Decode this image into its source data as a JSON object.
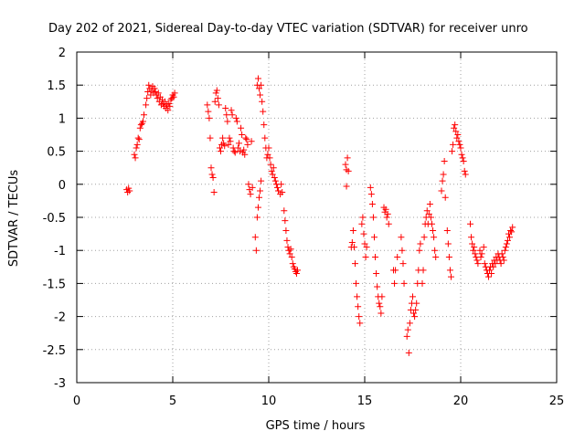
{
  "chart_data": {
    "type": "scatter",
    "title": "Day 202 of 2021, Sidereal Day-to-day VTEC variation (SDTVAR) for receiver unro",
    "xlabel": "GPS time / hours",
    "ylabel": "SDTVAR / TECUs",
    "xlim": [
      0,
      25
    ],
    "ylim": [
      -3,
      2
    ],
    "xticks": [
      0,
      5,
      10,
      15,
      20,
      25
    ],
    "yticks": [
      -3,
      -2.5,
      -2,
      -1.5,
      -1,
      -0.5,
      0,
      0.5,
      1,
      1.5,
      2
    ],
    "xtick_labels": [
      "0",
      "5",
      "10",
      "15",
      "20",
      "25"
    ],
    "ytick_labels": [
      "-3",
      "-2.5",
      "-2",
      "-1.5",
      "-1",
      "-0.5",
      "0",
      "0.5",
      "1",
      "1.5",
      "2"
    ],
    "grid": true,
    "marker": "+",
    "color": "#ff0000",
    "series": [
      {
        "name": "SDTVAR",
        "points": [
          [
            2.6,
            -0.08
          ],
          [
            2.65,
            -0.12
          ],
          [
            2.7,
            -0.06
          ],
          [
            2.75,
            -0.1
          ],
          [
            3.0,
            0.45
          ],
          [
            3.05,
            0.4
          ],
          [
            3.1,
            0.55
          ],
          [
            3.15,
            0.6
          ],
          [
            3.2,
            0.7
          ],
          [
            3.25,
            0.68
          ],
          [
            3.3,
            0.85
          ],
          [
            3.35,
            0.9
          ],
          [
            3.4,
            0.92
          ],
          [
            3.45,
            0.95
          ],
          [
            3.5,
            1.05
          ],
          [
            3.6,
            1.2
          ],
          [
            3.65,
            1.3
          ],
          [
            3.7,
            1.4
          ],
          [
            3.75,
            1.5
          ],
          [
            3.8,
            1.45
          ],
          [
            3.85,
            1.35
          ],
          [
            3.9,
            1.42
          ],
          [
            3.95,
            1.48
          ],
          [
            4.0,
            1.38
          ],
          [
            4.05,
            1.45
          ],
          [
            4.1,
            1.4
          ],
          [
            4.15,
            1.35
          ],
          [
            4.2,
            1.3
          ],
          [
            4.25,
            1.38
          ],
          [
            4.3,
            1.25
          ],
          [
            4.35,
            1.32
          ],
          [
            4.4,
            1.2
          ],
          [
            4.45,
            1.28
          ],
          [
            4.5,
            1.22
          ],
          [
            4.55,
            1.18
          ],
          [
            4.6,
            1.25
          ],
          [
            4.65,
            1.15
          ],
          [
            4.7,
            1.2
          ],
          [
            4.75,
            1.12
          ],
          [
            4.8,
            1.22
          ],
          [
            4.85,
            1.18
          ],
          [
            4.9,
            1.28
          ],
          [
            4.95,
            1.3
          ],
          [
            5.0,
            1.35
          ],
          [
            5.05,
            1.32
          ],
          [
            5.1,
            1.38
          ],
          [
            6.8,
            1.2
          ],
          [
            6.85,
            1.1
          ],
          [
            6.9,
            1.0
          ],
          [
            6.95,
            0.7
          ],
          [
            7.0,
            0.25
          ],
          [
            7.05,
            0.15
          ],
          [
            7.1,
            0.1
          ],
          [
            7.15,
            -0.12
          ],
          [
            7.2,
            1.25
          ],
          [
            7.25,
            1.38
          ],
          [
            7.3,
            1.42
          ],
          [
            7.35,
            1.3
          ],
          [
            7.4,
            1.2
          ],
          [
            7.45,
            0.55
          ],
          [
            7.5,
            0.5
          ],
          [
            7.55,
            0.6
          ],
          [
            7.6,
            0.7
          ],
          [
            7.65,
            0.62
          ],
          [
            7.7,
            0.58
          ],
          [
            7.75,
            1.15
          ],
          [
            7.8,
            1.05
          ],
          [
            7.85,
            0.95
          ],
          [
            7.9,
            0.6
          ],
          [
            7.95,
            0.7
          ],
          [
            8.0,
            0.65
          ],
          [
            8.05,
            1.12
          ],
          [
            8.1,
            1.05
          ],
          [
            8.15,
            0.55
          ],
          [
            8.2,
            0.5
          ],
          [
            8.25,
            0.48
          ],
          [
            8.3,
            1.0
          ],
          [
            8.35,
            0.95
          ],
          [
            8.4,
            0.55
          ],
          [
            8.45,
            0.62
          ],
          [
            8.5,
            0.5
          ],
          [
            8.55,
            0.85
          ],
          [
            8.6,
            0.75
          ],
          [
            8.65,
            0.48
          ],
          [
            8.7,
            0.52
          ],
          [
            8.75,
            0.45
          ],
          [
            8.8,
            0.7
          ],
          [
            8.85,
            0.68
          ],
          [
            8.9,
            0.6
          ],
          [
            8.95,
            0.0
          ],
          [
            9.0,
            -0.08
          ],
          [
            9.05,
            -0.15
          ],
          [
            9.1,
            0.65
          ],
          [
            9.15,
            -0.05
          ],
          [
            9.3,
            -0.8
          ],
          [
            9.35,
            -1.0
          ],
          [
            9.4,
            1.5
          ],
          [
            9.45,
            1.6
          ],
          [
            9.5,
            1.45
          ],
          [
            9.55,
            1.35
          ],
          [
            9.6,
            1.5
          ],
          [
            9.65,
            1.25
          ],
          [
            9.7,
            1.1
          ],
          [
            9.75,
            0.9
          ],
          [
            9.8,
            0.7
          ],
          [
            9.85,
            0.55
          ],
          [
            9.9,
            0.4
          ],
          [
            9.95,
            0.45
          ],
          [
            10.0,
            0.55
          ],
          [
            10.05,
            0.4
          ],
          [
            10.1,
            0.3
          ],
          [
            10.15,
            0.2
          ],
          [
            10.2,
            0.15
          ],
          [
            10.25,
            0.25
          ],
          [
            10.3,
            0.1
          ],
          [
            10.35,
            0.05
          ],
          [
            10.4,
            0.0
          ],
          [
            10.45,
            -0.05
          ],
          [
            10.5,
            -0.1
          ],
          [
            9.4,
            -0.5
          ],
          [
            9.45,
            -0.35
          ],
          [
            9.5,
            -0.2
          ],
          [
            9.55,
            -0.1
          ],
          [
            9.6,
            0.05
          ],
          [
            10.6,
            -0.15
          ],
          [
            10.65,
            -0.0
          ],
          [
            10.7,
            -0.12
          ],
          [
            10.8,
            -0.4
          ],
          [
            10.85,
            -0.55
          ],
          [
            10.9,
            -0.7
          ],
          [
            10.95,
            -0.85
          ],
          [
            11.0,
            -0.95
          ],
          [
            11.05,
            -1.0
          ],
          [
            11.1,
            -1.05
          ],
          [
            11.15,
            -0.98
          ],
          [
            11.2,
            -1.1
          ],
          [
            11.25,
            -1.2
          ],
          [
            11.3,
            -1.25
          ],
          [
            11.35,
            -1.28
          ],
          [
            11.4,
            -1.32
          ],
          [
            11.45,
            -1.35
          ],
          [
            11.5,
            -1.3
          ],
          [
            14.0,
            0.3
          ],
          [
            14.05,
            0.22
          ],
          [
            14.1,
            0.4
          ],
          [
            14.15,
            0.2
          ],
          [
            14.05,
            -0.03
          ],
          [
            14.3,
            -0.95
          ],
          [
            14.35,
            -0.88
          ],
          [
            14.4,
            -0.7
          ],
          [
            14.45,
            -0.95
          ],
          [
            14.5,
            -1.2
          ],
          [
            14.55,
            -1.5
          ],
          [
            14.6,
            -1.7
          ],
          [
            14.65,
            -1.85
          ],
          [
            14.7,
            -2.0
          ],
          [
            14.75,
            -2.1
          ],
          [
            14.85,
            -0.6
          ],
          [
            14.9,
            -0.5
          ],
          [
            14.95,
            -0.75
          ],
          [
            15.0,
            -0.9
          ],
          [
            15.05,
            -1.1
          ],
          [
            15.1,
            -0.95
          ],
          [
            15.3,
            -0.05
          ],
          [
            15.35,
            -0.15
          ],
          [
            15.4,
            -0.3
          ],
          [
            15.45,
            -0.5
          ],
          [
            15.5,
            -0.8
          ],
          [
            15.55,
            -1.1
          ],
          [
            15.6,
            -1.35
          ],
          [
            15.65,
            -1.55
          ],
          [
            15.7,
            -1.7
          ],
          [
            15.75,
            -1.8
          ],
          [
            15.8,
            -1.85
          ],
          [
            15.85,
            -1.95
          ],
          [
            15.9,
            -1.7
          ],
          [
            16.0,
            -0.35
          ],
          [
            16.05,
            -0.42
          ],
          [
            16.1,
            -0.38
          ],
          [
            16.15,
            -0.5
          ],
          [
            16.2,
            -0.45
          ],
          [
            16.25,
            -0.6
          ],
          [
            16.5,
            -1.3
          ],
          [
            16.55,
            -1.5
          ],
          [
            16.6,
            -1.3
          ],
          [
            16.7,
            -1.1
          ],
          [
            16.9,
            -0.8
          ],
          [
            16.95,
            -1.0
          ],
          [
            17.0,
            -1.2
          ],
          [
            17.05,
            -1.5
          ],
          [
            17.2,
            -2.3
          ],
          [
            17.25,
            -2.2
          ],
          [
            17.3,
            -2.55
          ],
          [
            17.35,
            -2.1
          ],
          [
            17.4,
            -1.9
          ],
          [
            17.45,
            -1.8
          ],
          [
            17.5,
            -1.7
          ],
          [
            17.55,
            -1.95
          ],
          [
            17.6,
            -2.0
          ],
          [
            17.65,
            -1.9
          ],
          [
            17.7,
            -1.8
          ],
          [
            17.75,
            -1.5
          ],
          [
            17.8,
            -1.3
          ],
          [
            17.85,
            -1.0
          ],
          [
            17.9,
            -0.9
          ],
          [
            18.0,
            -1.5
          ],
          [
            18.05,
            -1.3
          ],
          [
            18.1,
            -0.8
          ],
          [
            18.15,
            -0.6
          ],
          [
            18.2,
            -0.5
          ],
          [
            18.25,
            -0.4
          ],
          [
            18.3,
            -0.6
          ],
          [
            18.35,
            -0.45
          ],
          [
            18.4,
            -0.3
          ],
          [
            18.45,
            -0.5
          ],
          [
            18.5,
            -0.6
          ],
          [
            18.55,
            -0.7
          ],
          [
            18.6,
            -0.8
          ],
          [
            18.65,
            -1.0
          ],
          [
            18.7,
            -1.1
          ],
          [
            19.0,
            -0.1
          ],
          [
            19.05,
            0.05
          ],
          [
            19.1,
            0.15
          ],
          [
            19.15,
            0.35
          ],
          [
            19.2,
            -0.2
          ],
          [
            19.3,
            -0.7
          ],
          [
            19.35,
            -0.9
          ],
          [
            19.4,
            -1.1
          ],
          [
            19.45,
            -1.3
          ],
          [
            19.5,
            -1.4
          ],
          [
            19.55,
            0.5
          ],
          [
            19.6,
            0.6
          ],
          [
            19.65,
            0.85
          ],
          [
            19.7,
            0.9
          ],
          [
            19.75,
            0.8
          ],
          [
            19.8,
            0.7
          ],
          [
            19.85,
            0.75
          ],
          [
            19.9,
            0.65
          ],
          [
            19.95,
            0.6
          ],
          [
            20.0,
            0.55
          ],
          [
            20.05,
            0.45
          ],
          [
            20.1,
            0.4
          ],
          [
            20.15,
            0.35
          ],
          [
            20.2,
            0.2
          ],
          [
            20.25,
            0.15
          ],
          [
            20.5,
            -0.6
          ],
          [
            20.55,
            -0.8
          ],
          [
            20.6,
            -0.9
          ],
          [
            20.65,
            -1.0
          ],
          [
            20.7,
            -0.95
          ],
          [
            20.75,
            -1.05
          ],
          [
            20.8,
            -1.1
          ],
          [
            20.85,
            -1.15
          ],
          [
            20.9,
            -1.2
          ],
          [
            21.0,
            -1.0
          ],
          [
            21.05,
            -1.1
          ],
          [
            21.1,
            -1.05
          ],
          [
            21.2,
            -0.95
          ],
          [
            21.25,
            -1.2
          ],
          [
            21.3,
            -1.25
          ],
          [
            21.35,
            -1.3
          ],
          [
            21.4,
            -1.35
          ],
          [
            21.45,
            -1.4
          ],
          [
            21.5,
            -1.3
          ],
          [
            21.55,
            -1.25
          ],
          [
            21.6,
            -1.35
          ],
          [
            21.65,
            -1.2
          ],
          [
            21.7,
            -1.25
          ],
          [
            21.75,
            -1.15
          ],
          [
            21.8,
            -1.2
          ],
          [
            21.85,
            -1.1
          ],
          [
            21.9,
            -1.15
          ],
          [
            21.95,
            -1.05
          ],
          [
            22.0,
            -1.1
          ],
          [
            22.05,
            -1.15
          ],
          [
            22.1,
            -1.2
          ],
          [
            22.15,
            -1.05
          ],
          [
            22.2,
            -1.1
          ],
          [
            22.25,
            -1.15
          ],
          [
            22.3,
            -1.0
          ],
          [
            22.35,
            -0.95
          ],
          [
            22.4,
            -0.9
          ],
          [
            22.45,
            -0.85
          ],
          [
            22.5,
            -0.75
          ],
          [
            22.55,
            -0.8
          ],
          [
            22.6,
            -0.7
          ],
          [
            22.65,
            -0.72
          ],
          [
            22.7,
            -0.65
          ]
        ]
      }
    ]
  }
}
